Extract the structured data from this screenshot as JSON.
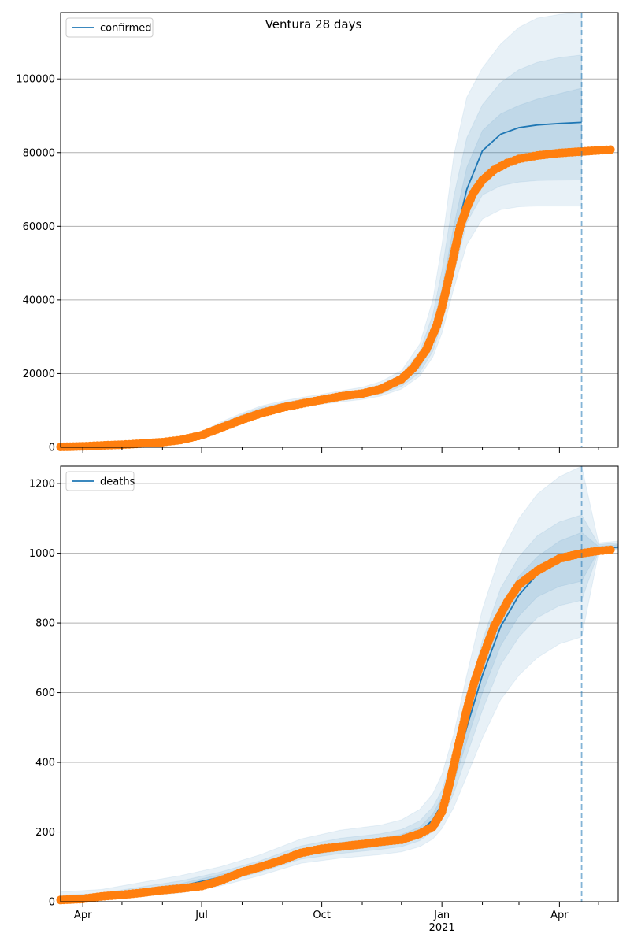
{
  "title": "Ventura 28 days",
  "colors": {
    "model": "#1f77b4",
    "observed": "#ff7f0e",
    "band": "#1f77b4",
    "grid": "#b0b0b0"
  },
  "x_axis": {
    "start": "2020-03-15",
    "end": "2021-05-16",
    "forecast_date": "2021-04-18",
    "ticks": [
      {
        "date": "2020-04-01",
        "label": "Apr"
      },
      {
        "date": "2020-07-01",
        "label": "Jul"
      },
      {
        "date": "2020-10-01",
        "label": "Oct"
      },
      {
        "date": "2021-01-01",
        "label": "Jan"
      },
      {
        "date": "2021-04-01",
        "label": "Apr"
      }
    ],
    "year_label": "2021"
  },
  "chart_data": [
    {
      "type": "line",
      "legend": "confirmed",
      "legend_position": "upper-left",
      "ylim": [
        0,
        118000
      ],
      "yticks": [
        0,
        20000,
        40000,
        60000,
        80000,
        100000
      ],
      "grid": "horizontal",
      "series": [
        {
          "name": "confirmed",
          "kind": "model",
          "x": [
            "2020-03-15",
            "2020-04-15",
            "2020-05-15",
            "2020-06-15",
            "2020-07-01",
            "2020-07-15",
            "2020-08-01",
            "2020-08-15",
            "2020-09-01",
            "2020-09-15",
            "2020-10-01",
            "2020-10-15",
            "2020-11-01",
            "2020-11-15",
            "2020-12-01",
            "2020-12-15",
            "2020-12-25",
            "2021-01-01",
            "2021-01-10",
            "2021-01-20",
            "2021-02-01",
            "2021-02-15",
            "2021-03-01",
            "2021-03-15",
            "2021-04-01",
            "2021-04-18"
          ],
          "y": [
            100,
            300,
            800,
            1800,
            3500,
            5800,
            8200,
            10000,
            11300,
            12200,
            13000,
            13700,
            14500,
            15700,
            18000,
            23000,
            30000,
            39000,
            55000,
            70000,
            80500,
            85000,
            86800,
            87500,
            87900,
            88200
          ],
          "bands": [
            {
              "lower": [
                50,
                200,
                600,
                1400,
                2900,
                4900,
                7200,
                8900,
                10100,
                11000,
                11700,
                12300,
                13000,
                13900,
                15800,
                19300,
                24500,
                31000,
                43000,
                55000,
                62000,
                64500,
                65300,
                65500,
                65500,
                65500
              ],
              "upper": [
                150,
                420,
                1050,
                2300,
                4200,
                6800,
                9300,
                11200,
                12600,
                13500,
                14400,
                15300,
                16300,
                17800,
                20800,
                28000,
                40000,
                55000,
                79000,
                95000,
                103000,
                109500,
                114000,
                116500,
                117500,
                118000
              ]
            },
            {
              "lower": [
                70,
                240,
                680,
                1550,
                3100,
                5200,
                7500,
                9300,
                10500,
                11400,
                12100,
                12800,
                13500,
                14500,
                16500,
                20300,
                26000,
                33500,
                47000,
                61000,
                68500,
                71000,
                72000,
                72400,
                72500,
                72600
              ],
              "upper": [
                130,
                380,
                950,
                2100,
                3950,
                6400,
                8900,
                10800,
                12100,
                13000,
                13900,
                14700,
                15600,
                17000,
                19700,
                26000,
                36000,
                48000,
                68000,
                84000,
                93000,
                99000,
                102500,
                104500,
                105800,
                106500
              ]
            },
            {
              "lower": [
                85,
                270,
                740,
                1680,
                3300,
                5500,
                7850,
                9650,
                10900,
                11800,
                12600,
                13200,
                14000,
                15100,
                17200,
                21600,
                28000,
                36000,
                51000,
                65500,
                74500,
                77500,
                78800,
                79200,
                79300,
                79500
              ],
              "upper": [
                115,
                340,
                880,
                1950,
                3750,
                6100,
                8600,
                10400,
                11700,
                12600,
                13400,
                14200,
                15000,
                16400,
                18800,
                24600,
                32500,
                43000,
                60000,
                76000,
                86000,
                90500,
                92800,
                94500,
                96000,
                97500
              ]
            }
          ]
        },
        {
          "name": "",
          "kind": "observed",
          "x": [
            "2020-03-15",
            "2020-04-01",
            "2020-04-15",
            "2020-05-01",
            "2020-05-15",
            "2020-06-01",
            "2020-06-15",
            "2020-07-01",
            "2020-07-15",
            "2020-08-01",
            "2020-08-15",
            "2020-09-01",
            "2020-09-15",
            "2020-10-01",
            "2020-10-15",
            "2020-11-01",
            "2020-11-15",
            "2020-12-01",
            "2020-12-10",
            "2020-12-20",
            "2020-12-28",
            "2021-01-01",
            "2021-01-05",
            "2021-01-10",
            "2021-01-15",
            "2021-01-20",
            "2021-01-25",
            "2021-02-01",
            "2021-02-10",
            "2021-02-20",
            "2021-03-01",
            "2021-03-15",
            "2021-04-01",
            "2021-04-18",
            "2021-05-01",
            "2021-05-10"
          ],
          "y": [
            100,
            250,
            500,
            700,
            1000,
            1400,
            2000,
            3300,
            5200,
            7500,
            9200,
            10800,
            11800,
            12900,
            13800,
            14600,
            15800,
            18500,
            21500,
            26500,
            33000,
            38000,
            44000,
            52000,
            60000,
            65000,
            69000,
            72500,
            75300,
            77200,
            78300,
            79200,
            79900,
            80300,
            80600,
            80800
          ]
        }
      ]
    },
    {
      "type": "line",
      "legend": "deaths",
      "legend_position": "upper-left",
      "ylim": [
        0,
        1250
      ],
      "yticks": [
        0,
        200,
        400,
        600,
        800,
        1000,
        1200
      ],
      "grid": "horizontal",
      "series": [
        {
          "name": "deaths",
          "kind": "model",
          "x": [
            "2020-03-15",
            "2020-04-15",
            "2020-05-15",
            "2020-06-15",
            "2020-07-15",
            "2020-08-15",
            "2020-09-15",
            "2020-10-15",
            "2020-11-15",
            "2020-12-01",
            "2020-12-15",
            "2020-12-25",
            "2021-01-01",
            "2021-01-10",
            "2021-01-20",
            "2021-02-01",
            "2021-02-15",
            "2021-03-01",
            "2021-03-15",
            "2021-04-01",
            "2021-04-18",
            "2021-05-01",
            "2021-05-16"
          ],
          "y": [
            5,
            15,
            30,
            45,
            70,
            100,
            140,
            158,
            170,
            180,
            200,
            235,
            280,
            370,
            500,
            650,
            790,
            880,
            940,
            980,
            1000,
            1012,
            1018
          ],
          "bands": [
            {
              "lower": [
                0,
                5,
                15,
                25,
                45,
                75,
                110,
                125,
                135,
                143,
                158,
                180,
                210,
                270,
                360,
                470,
                580,
                650,
                700,
                740,
                760,
                1000,
                1010
              ],
              "upper": [
                28,
                35,
                55,
                75,
                100,
                135,
                180,
                205,
                220,
                235,
                265,
                310,
                365,
                480,
                650,
                840,
                1000,
                1100,
                1170,
                1220,
                1250,
                1030,
                1035
              ]
            },
            {
              "lower": [
                2,
                9,
                21,
                33,
                55,
                85,
                122,
                138,
                150,
                158,
                175,
                202,
                238,
                310,
                420,
                550,
                680,
                760,
                815,
                850,
                865,
                1005,
                1013
              ],
              "upper": [
                18,
                24,
                42,
                60,
                85,
                118,
                160,
                182,
                195,
                207,
                232,
                272,
                320,
                425,
                575,
                750,
                900,
                990,
                1050,
                1090,
                1110,
                1025,
                1030
              ]
            },
            {
              "lower": [
                3,
                12,
                25,
                39,
                62,
                92,
                130,
                147,
                159,
                168,
                187,
                218,
                258,
                340,
                460,
                600,
                735,
                820,
                875,
                905,
                920,
                1008,
                1015
              ],
              "upper": [
                10,
                19,
                36,
                52,
                78,
                109,
                150,
                170,
                182,
                193,
                214,
                252,
                300,
                396,
                540,
                700,
                845,
                935,
                990,
                1035,
                1060,
                1020,
                1025
              ]
            }
          ]
        },
        {
          "name": "",
          "kind": "observed",
          "x": [
            "2020-03-15",
            "2020-04-01",
            "2020-04-15",
            "2020-05-01",
            "2020-05-15",
            "2020-06-01",
            "2020-06-15",
            "2020-07-01",
            "2020-07-15",
            "2020-08-01",
            "2020-08-15",
            "2020-09-01",
            "2020-09-15",
            "2020-10-01",
            "2020-10-15",
            "2020-11-01",
            "2020-11-15",
            "2020-12-01",
            "2020-12-15",
            "2020-12-25",
            "2021-01-01",
            "2021-01-05",
            "2021-01-10",
            "2021-01-15",
            "2021-01-20",
            "2021-01-25",
            "2021-02-01",
            "2021-02-10",
            "2021-02-20",
            "2021-03-01",
            "2021-03-15",
            "2021-04-01",
            "2021-04-18",
            "2021-05-01",
            "2021-05-10"
          ],
          "y": [
            5,
            8,
            15,
            20,
            25,
            33,
            38,
            45,
            60,
            85,
            100,
            120,
            140,
            152,
            158,
            165,
            172,
            178,
            195,
            215,
            258,
            310,
            390,
            470,
            550,
            620,
            700,
            790,
            860,
            910,
            950,
            985,
            1000,
            1007,
            1010
          ]
        }
      ]
    }
  ]
}
